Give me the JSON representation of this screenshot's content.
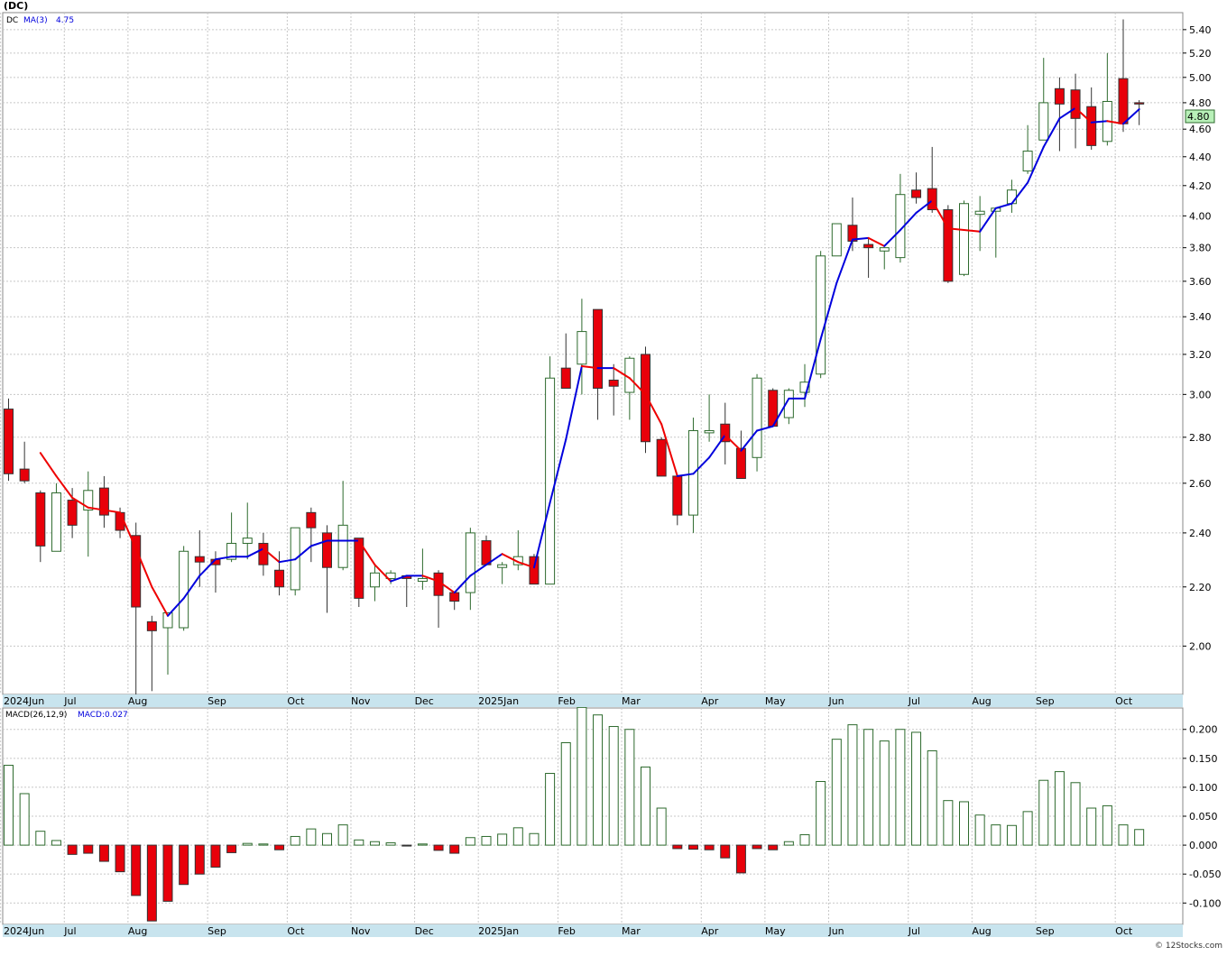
{
  "symbol_title": "(DC)",
  "legend": {
    "symbol": "DC",
    "ma_label": "MA(3)",
    "ma_value": "4.75"
  },
  "macd_legend": {
    "params": "MACD(26,12,9)",
    "value_label": "MACD:0.027"
  },
  "last_price_label": "4.80",
  "watermark": "© 12Stocks.com",
  "colors": {
    "up_candle": "#2d6a2d",
    "down_candle": "#e8000a",
    "ma_rising": "#0000dd",
    "ma_falling": "#ee0000",
    "axis_strip": "#c8e4ee",
    "macd_positive": "#2d6a2d",
    "macd_negative": "#e8000a",
    "last_price_bg": "#b8f0b8"
  },
  "chart_data": [
    {
      "type": "candlestick",
      "title": "(DC)",
      "x_axis_labels": [
        "2024Jun",
        "Jul",
        "Aug",
        "Sep",
        "Oct",
        "Nov",
        "Dec",
        "2025Jan",
        "Feb",
        "Mar",
        "Apr",
        "May",
        "Jun",
        "Jul",
        "Aug",
        "Sep",
        "Oct"
      ],
      "y_ticks": [
        "2.00",
        "2.20",
        "2.40",
        "2.60",
        "2.80",
        "3.00",
        "3.20",
        "3.40",
        "3.60",
        "3.80",
        "4.00",
        "4.20",
        "4.40",
        "4.60",
        "4.80",
        "5.00",
        "5.20",
        "5.40"
      ],
      "y_scale": "log",
      "ylim": [
        1.85,
        5.55
      ],
      "grid": true,
      "series": [
        {
          "name": "DC",
          "candles": [
            [
              2.93,
              2.98,
              2.61,
              2.64
            ],
            [
              2.66,
              2.78,
              2.6,
              2.61
            ],
            [
              2.56,
              2.57,
              2.29,
              2.35
            ],
            [
              2.33,
              2.6,
              2.33,
              2.56
            ],
            [
              2.53,
              2.58,
              2.38,
              2.43
            ],
            [
              2.49,
              2.65,
              2.31,
              2.57
            ],
            [
              2.58,
              2.63,
              2.42,
              2.47
            ],
            [
              2.48,
              2.5,
              2.38,
              2.41
            ],
            [
              2.39,
              2.44,
              1.85,
              2.13
            ],
            [
              2.08,
              2.1,
              1.86,
              2.05
            ],
            [
              2.06,
              2.11,
              1.91,
              2.11
            ],
            [
              2.06,
              2.35,
              2.05,
              2.33
            ],
            [
              2.31,
              2.41,
              2.2,
              2.29
            ],
            [
              2.3,
              2.33,
              2.18,
              2.28
            ],
            [
              2.3,
              2.48,
              2.29,
              2.36
            ],
            [
              2.36,
              2.52,
              2.3,
              2.38
            ],
            [
              2.36,
              2.4,
              2.24,
              2.28
            ],
            [
              2.26,
              2.33,
              2.17,
              2.2
            ],
            [
              2.19,
              2.42,
              2.17,
              2.42
            ],
            [
              2.48,
              2.5,
              2.29,
              2.42
            ],
            [
              2.4,
              2.43,
              2.11,
              2.27
            ],
            [
              2.27,
              2.61,
              2.26,
              2.43
            ],
            [
              2.38,
              2.38,
              2.13,
              2.16
            ],
            [
              2.2,
              2.28,
              2.15,
              2.25
            ],
            [
              2.23,
              2.26,
              2.21,
              2.25
            ],
            [
              2.24,
              2.24,
              2.13,
              2.23
            ],
            [
              2.22,
              2.34,
              2.19,
              2.23
            ],
            [
              2.25,
              2.26,
              2.06,
              2.17
            ],
            [
              2.18,
              2.18,
              2.12,
              2.15
            ],
            [
              2.18,
              2.42,
              2.12,
              2.4
            ],
            [
              2.37,
              2.39,
              2.28,
              2.28
            ],
            [
              2.27,
              2.29,
              2.21,
              2.28
            ],
            [
              2.28,
              2.41,
              2.26,
              2.31
            ],
            [
              2.31,
              2.32,
              2.21,
              2.21
            ],
            [
              2.21,
              3.19,
              2.21,
              3.08
            ],
            [
              3.13,
              3.31,
              3.03,
              3.03
            ],
            [
              3.15,
              3.5,
              3.0,
              3.32
            ],
            [
              3.44,
              3.44,
              2.88,
              3.03
            ],
            [
              3.07,
              3.15,
              2.9,
              3.04
            ],
            [
              3.01,
              3.19,
              2.88,
              3.18
            ],
            [
              3.2,
              3.24,
              2.73,
              2.78
            ],
            [
              2.79,
              2.8,
              2.63,
              2.63
            ],
            [
              2.63,
              2.63,
              2.43,
              2.47
            ],
            [
              2.47,
              2.89,
              2.4,
              2.83
            ],
            [
              2.82,
              3.0,
              2.78,
              2.83
            ],
            [
              2.86,
              2.96,
              2.68,
              2.78
            ],
            [
              2.75,
              2.83,
              2.62,
              2.62
            ],
            [
              2.71,
              3.1,
              2.65,
              3.08
            ],
            [
              3.02,
              3.03,
              2.85,
              2.85
            ],
            [
              2.89,
              3.03,
              2.86,
              3.02
            ],
            [
              3.01,
              3.15,
              2.94,
              3.06
            ],
            [
              3.1,
              3.78,
              3.08,
              3.75
            ],
            [
              3.75,
              3.94,
              3.75,
              3.95
            ],
            [
              3.94,
              4.12,
              3.78,
              3.84
            ],
            [
              3.82,
              3.86,
              3.62,
              3.8
            ],
            [
              3.78,
              3.8,
              3.67,
              3.8
            ],
            [
              3.74,
              4.28,
              3.71,
              4.14
            ],
            [
              4.17,
              4.29,
              4.08,
              4.12
            ],
            [
              4.18,
              4.47,
              4.02,
              4.04
            ],
            [
              4.04,
              4.07,
              3.59,
              3.6
            ],
            [
              3.64,
              4.1,
              3.63,
              4.08
            ],
            [
              4.01,
              4.13,
              3.78,
              4.03
            ],
            [
              4.03,
              4.04,
              3.74,
              4.05
            ],
            [
              4.08,
              4.24,
              4.02,
              4.17
            ],
            [
              4.3,
              4.63,
              4.28,
              4.44
            ],
            [
              4.52,
              5.16,
              4.52,
              4.8
            ],
            [
              4.91,
              5.0,
              4.44,
              4.79
            ],
            [
              4.9,
              5.03,
              4.46,
              4.68
            ],
            [
              4.77,
              4.92,
              4.45,
              4.48
            ],
            [
              4.51,
              5.2,
              4.48,
              4.81
            ],
            [
              4.99,
              5.49,
              4.58,
              4.64
            ],
            [
              4.8,
              4.82,
              4.63,
              4.79
            ]
          ]
        },
        {
          "name": "MA(3)",
          "values": [
            null,
            null,
            2.73,
            2.63,
            2.54,
            2.5,
            2.49,
            2.48,
            2.34,
            2.2,
            2.1,
            2.16,
            2.24,
            2.3,
            2.31,
            2.31,
            2.34,
            2.29,
            2.3,
            2.35,
            2.37,
            2.37,
            2.37,
            2.28,
            2.22,
            2.24,
            2.24,
            2.22,
            2.18,
            2.24,
            2.28,
            2.32,
            2.29,
            2.27,
            2.52,
            2.79,
            3.14,
            3.13,
            3.13,
            3.08,
            3.0,
            2.86,
            2.63,
            2.64,
            2.71,
            2.81,
            2.74,
            2.83,
            2.85,
            2.98,
            2.98,
            3.28,
            3.59,
            3.85,
            3.86,
            3.81,
            3.91,
            4.02,
            4.1,
            3.92,
            3.91,
            3.9,
            4.05,
            4.08,
            4.22,
            4.47,
            4.68,
            4.76,
            4.65,
            4.66,
            4.64,
            4.75
          ]
        }
      ]
    },
    {
      "type": "bar",
      "title": "MACD(26,12,9)",
      "y_ticks": [
        "-0.100",
        "-0.050",
        "0.000",
        "0.050",
        "0.100",
        "0.150",
        "0.200"
      ],
      "ylim": [
        -0.137,
        0.237
      ],
      "grid": true,
      "series": [
        {
          "name": "MACD",
          "values": [
            0.138,
            0.089,
            0.024,
            0.008,
            -0.016,
            -0.014,
            -0.028,
            -0.046,
            -0.087,
            -0.131,
            -0.097,
            -0.068,
            -0.05,
            -0.038,
            -0.013,
            0.003,
            0.002,
            -0.008,
            0.015,
            0.028,
            0.02,
            0.035,
            0.009,
            0.006,
            0.004,
            -0.001,
            0.002,
            -0.009,
            -0.014,
            0.013,
            0.015,
            0.019,
            0.03,
            0.02,
            0.124,
            0.177,
            0.238,
            0.225,
            0.205,
            0.2,
            0.135,
            0.064,
            -0.006,
            -0.007,
            -0.008,
            -0.022,
            -0.048,
            -0.006,
            -0.008,
            0.006,
            0.018,
            0.11,
            0.183,
            0.208,
            0.2,
            0.18,
            0.2,
            0.195,
            0.163,
            0.077,
            0.075,
            0.052,
            0.035,
            0.034,
            0.058,
            0.112,
            0.127,
            0.108,
            0.064,
            0.068,
            0.035,
            0.027
          ]
        }
      ]
    }
  ]
}
